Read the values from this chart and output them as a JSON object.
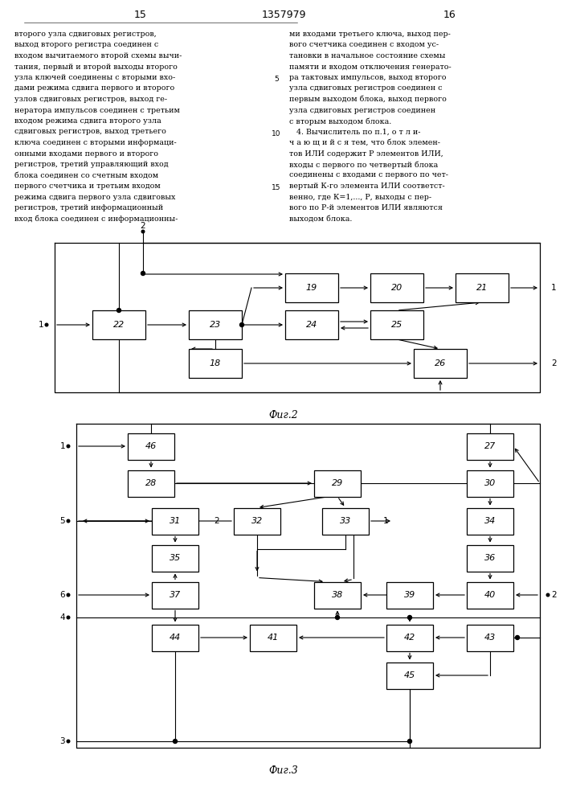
{
  "header": {
    "left_num": "15",
    "center_num": "1357979",
    "right_num": "16"
  },
  "body_text_left": [
    "второго узла сдвиговых регистров,",
    "выход второго регистра соединен с",
    "входом вычитаемого второй схемы вычи-",
    "тания, первый и второй выходы второго",
    "узла ключей соединены с вторыми вхо-",
    "дами режима сдвига первого и второго",
    "узлов сдвиговых регистров, выход ге-",
    "нератора импульсов соединен с третьим",
    "входом режима сдвига второго узла",
    "сдвиговых регистров, выход третьего",
    "ключа соединен с вторыми информаци-",
    "онными входами первого и второго",
    "регистров, третий управляющий вход",
    "блока соединен со счетным входом",
    "первого счетчика и третьим входом",
    "режима сдвига первого узла сдвиговых",
    "регистров, третий информационный",
    "вход блока соединен с информационны-"
  ],
  "body_text_right": [
    "ми входами третьего ключа, выход пер-",
    "вого счетчика соединен с входом ус-",
    "тановки в начальное состояние схемы",
    "памяти и входом отключения генерато-",
    "ра тактовых импульсов, выход второго",
    "узла сдвиговых регистров соединен с",
    "первым выходом блока, выход первого",
    "узла сдвиговых регистров соединен",
    "с вторым выходом блока.",
    "   4. Вычислитель по п.1, о т л и-",
    "ч а ю щ и й с я тем, что блок элемен-",
    "тов ИЛИ содержит Р элементов ИЛИ,",
    "входы с первого по четвертый блока",
    "соединены с входами с первого по чет-",
    "вертый К-го элемента ИЛИ соответст-",
    "венно, где К=1,..., Р, выходы с пер-",
    "вого по Р-й элементов ИЛИ являются",
    "выходом блока."
  ],
  "fig2_caption": "Фиг.2",
  "fig3_caption": "Фиг.3"
}
